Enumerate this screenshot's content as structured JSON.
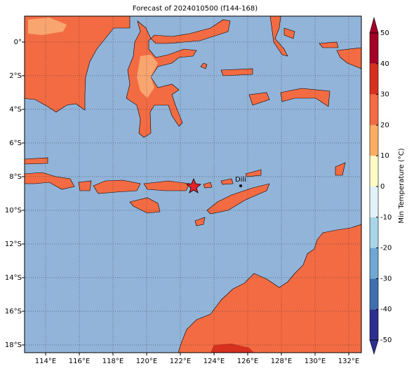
{
  "chart_data": {
    "type": "map",
    "title": "Forecast of 2024010500 (f144-168)",
    "xlim": [
      112.75,
      132.75
    ],
    "ylim": [
      -18.46,
      1.54
    ],
    "xticks": [
      {
        "value": 114,
        "label": "114°E"
      },
      {
        "value": 116,
        "label": "116°E"
      },
      {
        "value": 118,
        "label": "118°E"
      },
      {
        "value": 120,
        "label": "120°E"
      },
      {
        "value": 122,
        "label": "122°E"
      },
      {
        "value": 124,
        "label": "124°E"
      },
      {
        "value": 126,
        "label": "126°E"
      },
      {
        "value": 128,
        "label": "128°E"
      },
      {
        "value": 130,
        "label": "130°E"
      },
      {
        "value": 132,
        "label": "132°E"
      }
    ],
    "yticks": [
      {
        "value": 0,
        "label": "0°"
      },
      {
        "value": -2,
        "label": "2°S"
      },
      {
        "value": -4,
        "label": "4°S"
      },
      {
        "value": -6,
        "label": "6°S"
      },
      {
        "value": -8,
        "label": "8°S"
      },
      {
        "value": -10,
        "label": "10°S"
      },
      {
        "value": -12,
        "label": "12°S"
      },
      {
        "value": -14,
        "label": "14°S"
      },
      {
        "value": -16,
        "label": "16°S"
      },
      {
        "value": -18,
        "label": "18°S"
      }
    ],
    "grid": true,
    "ocean_color": "#92b4d9",
    "city": "Dili",
    "colorbar": {
      "label": "Min Temperature (°C)",
      "ticks": [
        -50,
        -40,
        -30,
        -20,
        -10,
        0,
        10,
        20,
        30,
        40,
        50
      ],
      "colors": [
        "#2c2f8f",
        "#3f6fb0",
        "#6fa8d2",
        "#a8d5e8",
        "#e1f3f8",
        "#fefbc6",
        "#fdae61",
        "#f26b43",
        "#d7301f",
        "#a50026"
      ]
    }
  }
}
